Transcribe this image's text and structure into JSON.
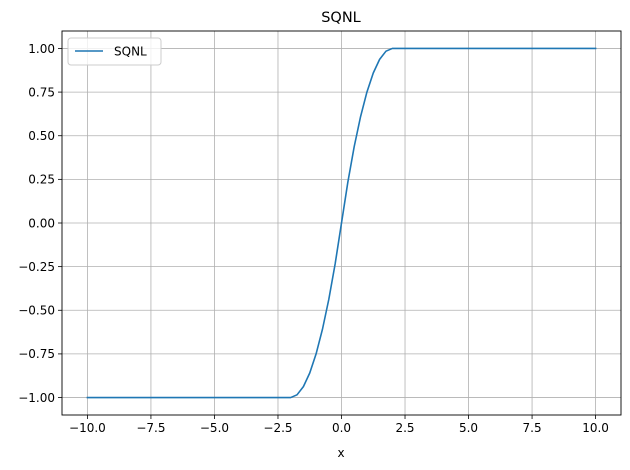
{
  "chart_data": {
    "type": "line",
    "title": "SQNL",
    "xlabel": "x",
    "ylabel": "",
    "xlim": [
      -11.0,
      11.0
    ],
    "ylim": [
      -1.1,
      1.1
    ],
    "grid": true,
    "legend": {
      "position": "upper-left",
      "entries": [
        "SQNL"
      ]
    },
    "x_ticks": [
      "−10.0",
      "−7.5",
      "−5.0",
      "−2.5",
      "0.0",
      "2.5",
      "5.0",
      "7.5",
      "10.0"
    ],
    "x_tick_values": [
      -10,
      -7.5,
      -5,
      -2.5,
      0,
      2.5,
      5,
      7.5,
      10
    ],
    "y_ticks": [
      "−1.00",
      "−0.75",
      "−0.50",
      "−0.25",
      "0.00",
      "0.25",
      "0.50",
      "0.75",
      "1.00"
    ],
    "y_tick_values": [
      -1,
      -0.75,
      -0.5,
      -0.25,
      0,
      0.25,
      0.5,
      0.75,
      1
    ],
    "series": [
      {
        "name": "SQNL",
        "color": "#1f77b4",
        "x": [
          -10,
          -2,
          -1.75,
          -1.5,
          -1.25,
          -1,
          -0.75,
          -0.5,
          -0.25,
          0,
          0.25,
          0.5,
          0.75,
          1,
          1.25,
          1.5,
          1.75,
          2,
          10
        ],
        "y": [
          -1,
          -1,
          -0.984375,
          -0.9375,
          -0.859375,
          -0.75,
          -0.609375,
          -0.4375,
          -0.234375,
          0,
          0.234375,
          0.4375,
          0.609375,
          0.75,
          0.859375,
          0.9375,
          0.984375,
          1,
          1
        ]
      }
    ]
  }
}
